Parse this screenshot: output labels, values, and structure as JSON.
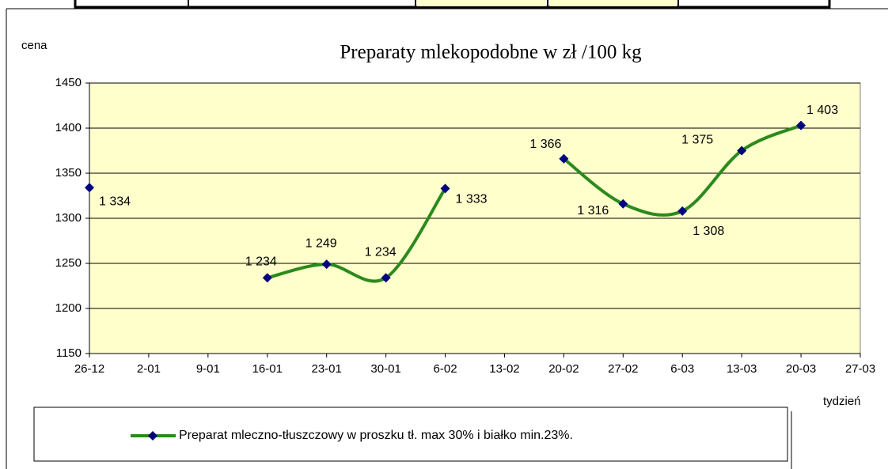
{
  "chart_data": {
    "type": "line",
    "title": "Preparaty mlekopodobne w zł /100 kg",
    "y_label": "cena",
    "x_label": "tydzień",
    "categories": [
      "26-12",
      "2-01",
      "9-01",
      "16-01",
      "23-01",
      "30-01",
      "6-02",
      "13-02",
      "20-02",
      "27-02",
      "6-03",
      "13-03",
      "20-03",
      "27-03"
    ],
    "series": [
      {
        "name": "Preparat mleczno-tłuszczowy w proszku tł. max 30% i białko min.23%.",
        "color": "#2b8a1c",
        "marker_color": "#000080",
        "values": [
          1334,
          null,
          null,
          1234,
          1249,
          1234,
          1333,
          null,
          1366,
          1316,
          1308,
          1375,
          1403,
          null
        ],
        "value_labels": [
          "1 334",
          null,
          null,
          "1 234",
          "1 249",
          "1 234",
          "1 333",
          null,
          "1 366",
          "1 316",
          "1 308",
          "1 375",
          "1 403",
          null
        ]
      }
    ],
    "ylim": [
      1150,
      1450
    ],
    "yticks": [
      1150,
      1200,
      1250,
      1300,
      1350,
      1400,
      1450
    ],
    "grid": true,
    "smooth": true,
    "plot_background": "#ffffcc",
    "legend": "bottom"
  }
}
